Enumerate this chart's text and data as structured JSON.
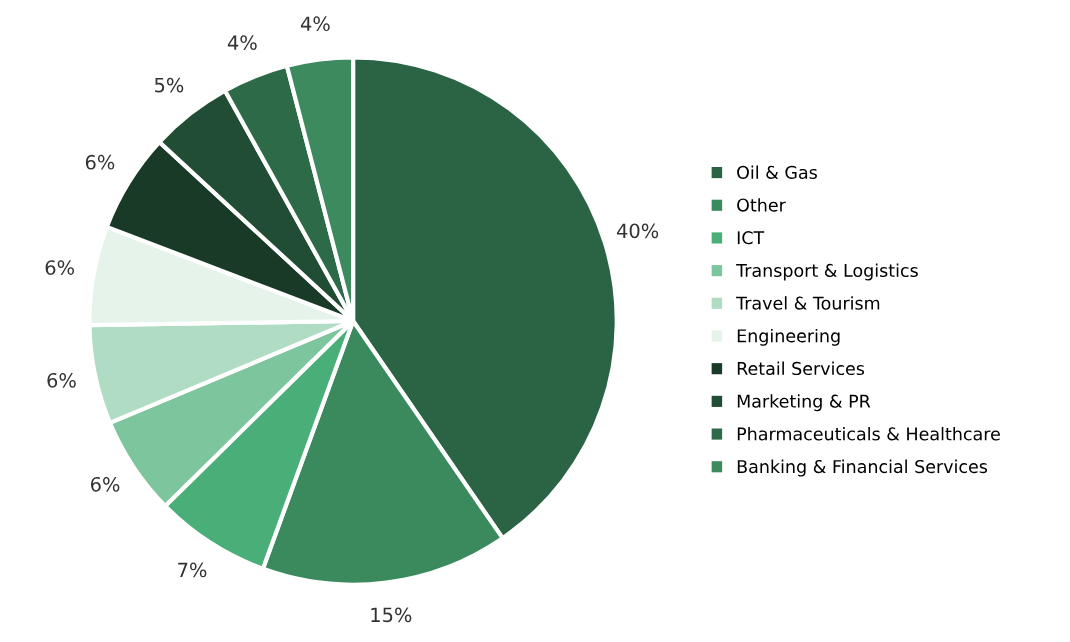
{
  "chart_data": {
    "type": "pie",
    "categories": [
      "Oil & Gas",
      "Other",
      "ICT",
      "Transport & Logistics",
      "Travel & Tourism",
      "Engineering",
      "Retail Services",
      "Marketing & PR",
      "Pharmaceuticals & Healthcare",
      "Banking & Financial Services"
    ],
    "values": [
      40,
      15,
      7,
      6,
      6,
      6,
      6,
      5,
      4,
      4
    ],
    "value_labels": [
      "40%",
      "15%",
      "7%",
      "6%",
      "6%",
      "6%",
      "6%",
      "5%",
      "4%",
      "4%"
    ],
    "colors": [
      "#2a6445",
      "#3a8a5e",
      "#4aae78",
      "#7dc69d",
      "#b0dcc3",
      "#e5f3ea",
      "#1a3a28",
      "#214d35",
      "#2d6a48",
      "#3d8a5f"
    ],
    "legend": "right"
  }
}
